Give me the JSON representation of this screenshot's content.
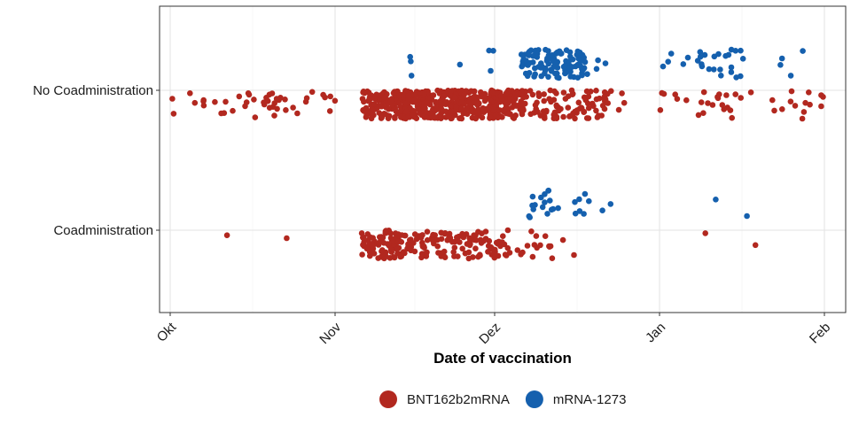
{
  "chart_data": {
    "type": "scatter",
    "subtype": "jitter-strip",
    "title": "",
    "xlabel": "Date of vaccination",
    "ylabel": "",
    "x_axis": {
      "kind": "date",
      "xlim": [
        "2021-09-29",
        "2022-02-05"
      ],
      "ticks": [
        {
          "date": "2021-10-01",
          "label": "Okt"
        },
        {
          "date": "2021-11-01",
          "label": "Nov"
        },
        {
          "date": "2021-12-01",
          "label": "Dez"
        },
        {
          "date": "2022-01-01",
          "label": "Jan"
        },
        {
          "date": "2022-02-01",
          "label": "Feb"
        }
      ]
    },
    "categories": [
      "No Coadministration",
      "Coadministration"
    ],
    "grid": true,
    "legend": {
      "position": "bottom"
    },
    "series": [
      {
        "name": "BNT162b2mRNA",
        "color": "#B2281F",
        "clusters": [
          {
            "category": "No Coadministration",
            "ranges": [
              [
                "2021-10-01",
                "2021-10-31",
                45
              ],
              [
                "2021-11-06",
                "2021-11-14",
                140
              ],
              [
                "2021-11-14",
                "2021-11-22",
                150
              ],
              [
                "2021-11-22",
                "2021-11-30",
                140
              ],
              [
                "2021-11-30",
                "2021-12-06",
                100
              ],
              [
                "2021-12-06",
                "2021-12-12",
                30
              ],
              [
                "2021-12-12",
                "2021-12-21",
                55
              ],
              [
                "2021-12-21",
                "2021-12-26",
                6
              ],
              [
                "2022-01-01",
                "2022-01-06",
                6
              ],
              [
                "2022-01-08",
                "2022-01-14",
                14
              ],
              [
                "2022-01-14",
                "2022-01-31",
                18
              ]
            ]
          },
          {
            "category": "Coadministration",
            "ranges": [
              [
                "2021-10-11",
                "2021-10-11",
                1
              ],
              [
                "2021-10-22",
                "2021-10-22",
                1
              ],
              [
                "2021-11-06",
                "2021-11-12",
                70
              ],
              [
                "2021-11-13",
                "2021-11-19",
                45
              ],
              [
                "2021-11-20",
                "2021-11-28",
                55
              ],
              [
                "2021-11-29",
                "2021-12-03",
                28
              ],
              [
                "2021-12-05",
                "2021-12-09",
                10
              ],
              [
                "2021-12-10",
                "2021-12-16",
                7
              ],
              [
                "2022-01-09",
                "2022-01-09",
                1
              ],
              [
                "2022-01-19",
                "2022-01-19",
                1
              ]
            ]
          }
        ]
      },
      {
        "name": "mRNA-1273",
        "color": "#1560AE",
        "clusters": [
          {
            "category": "No Coadministration",
            "ranges": [
              [
                "2021-11-15",
                "2021-11-17",
                3
              ],
              [
                "2021-11-24",
                "2021-11-24",
                1
              ],
              [
                "2021-11-29",
                "2021-12-01",
                3
              ],
              [
                "2021-12-06",
                "2021-12-12",
                55
              ],
              [
                "2021-12-12",
                "2021-12-17",
                55
              ],
              [
                "2021-12-17",
                "2021-12-21",
                8
              ],
              [
                "2022-01-01",
                "2022-01-06",
                5
              ],
              [
                "2022-01-08",
                "2022-01-16",
                22
              ],
              [
                "2022-01-22",
                "2022-01-27",
                4
              ]
            ]
          },
          {
            "category": "Coadministration",
            "ranges": [
              [
                "2021-12-07",
                "2021-12-10",
                9
              ],
              [
                "2021-12-10",
                "2021-12-16",
                12
              ],
              [
                "2021-12-17",
                "2021-12-22",
                5
              ],
              [
                "2022-01-11",
                "2022-01-11",
                1
              ],
              [
                "2022-01-17",
                "2022-01-17",
                1
              ]
            ]
          }
        ]
      }
    ]
  }
}
